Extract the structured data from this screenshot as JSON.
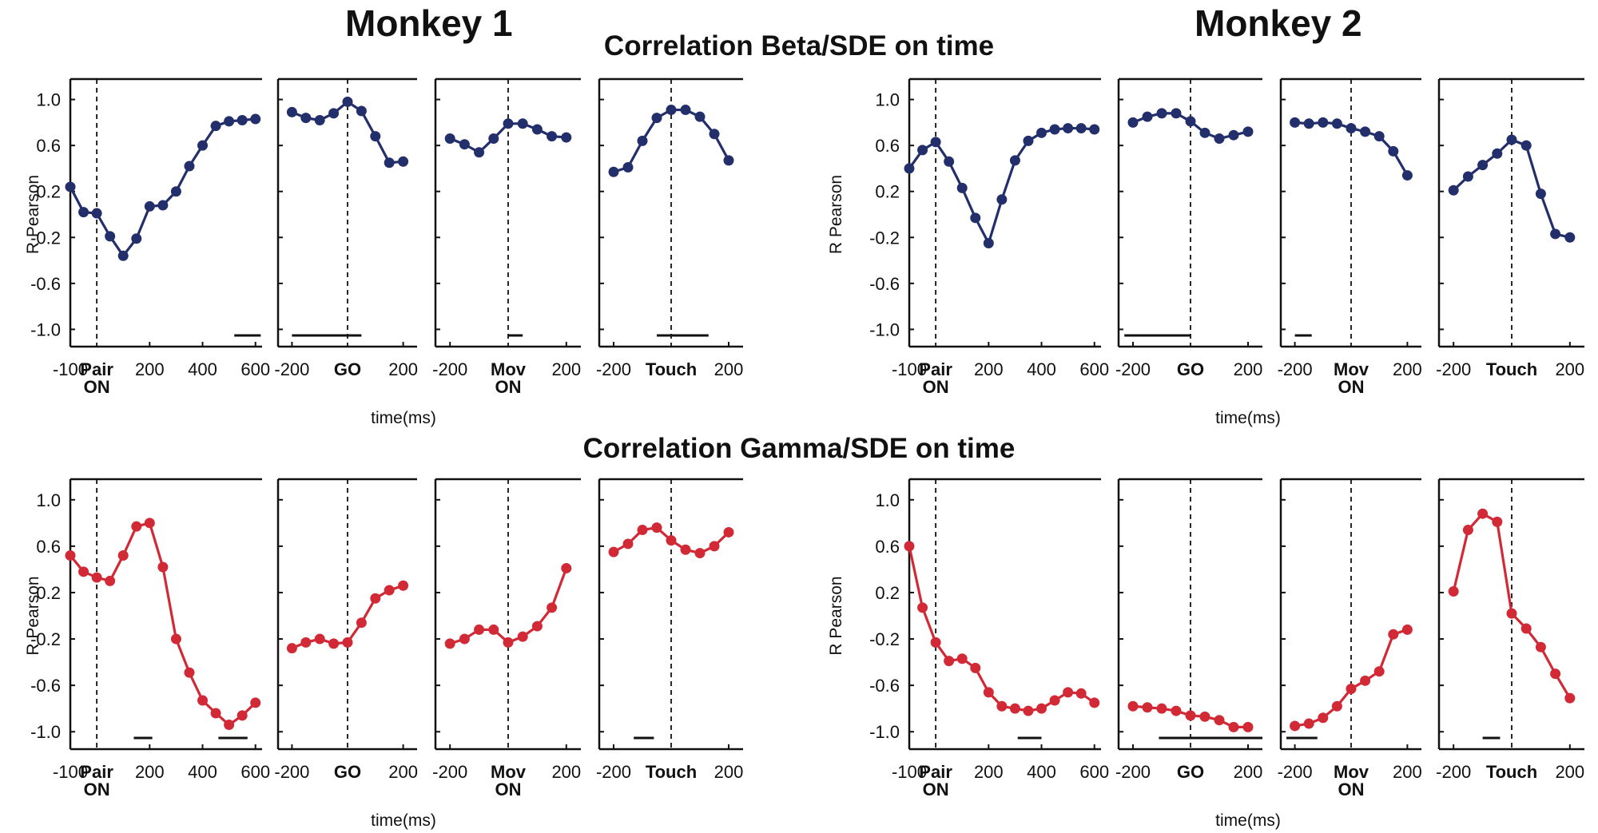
{
  "titles": {
    "monkey1": "Monkey 1",
    "monkey2": "Monkey 2",
    "beta_row": "Correlation Beta/SDE on time",
    "gamma_row": "Correlation Gamma/SDE on time"
  },
  "colors": {
    "beta": "#232f6b",
    "gamma": "#d12a36",
    "axis": "#111111"
  },
  "chart_data": [
    {
      "id": "m1-beta",
      "type": "line",
      "title": "Correlation Beta/SDE on time",
      "monkey": "Monkey 1",
      "ylabel": "R Pearson",
      "xlabel": "time(ms)",
      "ylim": [
        -1.15,
        1.15
      ],
      "yticks": [
        1.0,
        0.6,
        0.2,
        -0.2,
        -0.6,
        -1.0
      ],
      "ytick_labels": [
        "1.0",
        "0.6",
        "0.2",
        "-0.2",
        "-0.6",
        "-1.0"
      ],
      "color_key": "beta",
      "panels": [
        {
          "event": [
            "Pair",
            "ON"
          ],
          "xlim": [
            -100,
            625
          ],
          "ticks": [
            {
              "v": -100,
              "t": "-100"
            },
            {
              "v": 200,
              "t": "200"
            },
            {
              "v": 400,
              "t": "400"
            },
            {
              "v": 600,
              "t": "600"
            }
          ],
          "x": [
            -100,
            -50,
            0,
            50,
            100,
            150,
            200,
            250,
            300,
            350,
            400,
            450,
            500,
            550,
            600
          ],
          "y": [
            0.24,
            0.02,
            0.01,
            -0.19,
            -0.36,
            -0.21,
            0.07,
            0.08,
            0.2,
            0.42,
            0.6,
            0.77,
            0.81,
            0.82,
            0.83
          ],
          "sig": [
            [
              520,
              620
            ]
          ]
        },
        {
          "event": [
            "GO"
          ],
          "xlim": [
            -250,
            250
          ],
          "ticks": [
            {
              "v": -200,
              "t": "-200"
            },
            {
              "v": 200,
              "t": "200"
            }
          ],
          "x": [
            -200,
            -150,
            -100,
            -50,
            0,
            50,
            100,
            150,
            200
          ],
          "y": [
            0.89,
            0.84,
            0.82,
            0.88,
            0.98,
            0.9,
            0.68,
            0.45,
            0.46
          ],
          "sig": [
            [
              -200,
              50
            ]
          ]
        },
        {
          "event": [
            "Mov",
            "ON"
          ],
          "xlim": [
            -250,
            250
          ],
          "ticks": [
            {
              "v": -200,
              "t": "-200"
            },
            {
              "v": 200,
              "t": "200"
            }
          ],
          "x": [
            -200,
            -150,
            -100,
            -50,
            0,
            50,
            100,
            150,
            200
          ],
          "y": [
            0.66,
            0.61,
            0.54,
            0.66,
            0.79,
            0.79,
            0.74,
            0.68,
            0.67
          ],
          "sig": [
            [
              0,
              50
            ]
          ]
        },
        {
          "event": [
            "Touch"
          ],
          "xlim": [
            -250,
            250
          ],
          "ticks": [
            {
              "v": -200,
              "t": "-200"
            },
            {
              "v": 200,
              "t": "200"
            }
          ],
          "x": [
            -200,
            -150,
            -100,
            -50,
            0,
            50,
            100,
            150,
            200
          ],
          "y": [
            0.37,
            0.41,
            0.64,
            0.84,
            0.91,
            0.91,
            0.85,
            0.7,
            0.47
          ],
          "sig": [
            [
              -50,
              130
            ]
          ]
        }
      ]
    },
    {
      "id": "m2-beta",
      "type": "line",
      "title": "Correlation Beta/SDE on time",
      "monkey": "Monkey 2",
      "ylabel": "R Pearson",
      "xlabel": "time(ms)",
      "ylim": [
        -1.15,
        1.15
      ],
      "yticks": [
        1.0,
        0.6,
        0.2,
        -0.2,
        -0.6,
        -1.0
      ],
      "ytick_labels": [
        "1.0",
        "0.6",
        "0.2",
        "-0.2",
        "-0.6",
        "-1.0"
      ],
      "color_key": "beta",
      "panels": [
        {
          "event": [
            "Pair",
            "ON"
          ],
          "xlim": [
            -100,
            625
          ],
          "ticks": [
            {
              "v": -100,
              "t": "-100"
            },
            {
              "v": 200,
              "t": "200"
            },
            {
              "v": 400,
              "t": "400"
            },
            {
              "v": 600,
              "t": "600"
            }
          ],
          "x": [
            -100,
            -50,
            0,
            50,
            100,
            150,
            200,
            250,
            300,
            350,
            400,
            450,
            500,
            550,
            600
          ],
          "y": [
            0.4,
            0.56,
            0.63,
            0.46,
            0.23,
            -0.03,
            -0.25,
            0.13,
            0.47,
            0.64,
            0.71,
            0.74,
            0.75,
            0.75,
            0.74
          ],
          "sig": []
        },
        {
          "event": [
            "GO"
          ],
          "xlim": [
            -250,
            250
          ],
          "ticks": [
            {
              "v": -200,
              "t": "-200"
            },
            {
              "v": 200,
              "t": "200"
            }
          ],
          "x": [
            -200,
            -150,
            -100,
            -50,
            0,
            50,
            100,
            150,
            200
          ],
          "y": [
            0.8,
            0.85,
            0.88,
            0.88,
            0.81,
            0.71,
            0.66,
            0.69,
            0.72
          ],
          "sig": [
            [
              -230,
              0
            ]
          ]
        },
        {
          "event": [
            "Mov",
            "ON"
          ],
          "xlim": [
            -250,
            250
          ],
          "ticks": [
            {
              "v": -200,
              "t": "-200"
            },
            {
              "v": 200,
              "t": "200"
            }
          ],
          "x": [
            -200,
            -150,
            -100,
            -50,
            0,
            50,
            100,
            150,
            200
          ],
          "y": [
            0.8,
            0.79,
            0.8,
            0.79,
            0.75,
            0.72,
            0.68,
            0.55,
            0.34
          ],
          "sig": [
            [
              -200,
              -140
            ]
          ]
        },
        {
          "event": [
            "Touch"
          ],
          "xlim": [
            -250,
            250
          ],
          "ticks": [
            {
              "v": -200,
              "t": "-200"
            },
            {
              "v": 200,
              "t": "200"
            }
          ],
          "x": [
            -200,
            -150,
            -100,
            -50,
            0,
            50,
            100,
            150,
            200
          ],
          "y": [
            0.21,
            0.33,
            0.43,
            0.53,
            0.65,
            0.6,
            0.18,
            -0.17,
            -0.2
          ],
          "sig": []
        }
      ]
    },
    {
      "id": "m1-gamma",
      "type": "line",
      "title": "Correlation Gamma/SDE on time",
      "monkey": "Monkey 1",
      "ylabel": "R Pearson",
      "xlabel": "time(ms)",
      "ylim": [
        -1.15,
        1.15
      ],
      "yticks": [
        1.0,
        0.6,
        0.2,
        -0.2,
        -0.6,
        -1.0
      ],
      "ytick_labels": [
        "1.0",
        "0.6",
        "0.2",
        "-0.2",
        "-0.6",
        "-1.0"
      ],
      "color_key": "gamma",
      "panels": [
        {
          "event": [
            "Pair",
            "ON"
          ],
          "xlim": [
            -100,
            625
          ],
          "ticks": [
            {
              "v": -100,
              "t": "-100"
            },
            {
              "v": 200,
              "t": "200"
            },
            {
              "v": 400,
              "t": "400"
            },
            {
              "v": 600,
              "t": "600"
            }
          ],
          "x": [
            -100,
            -50,
            0,
            50,
            100,
            150,
            200,
            250,
            300,
            350,
            400,
            450,
            500,
            550,
            600
          ],
          "y": [
            0.52,
            0.38,
            0.33,
            0.3,
            0.52,
            0.77,
            0.8,
            0.42,
            -0.2,
            -0.49,
            -0.73,
            -0.84,
            -0.94,
            -0.86,
            -0.75
          ],
          "sig": [
            [
              140,
              210
            ],
            [
              460,
              570
            ]
          ]
        },
        {
          "event": [
            "GO"
          ],
          "xlim": [
            -250,
            250
          ],
          "ticks": [
            {
              "v": -200,
              "t": "-200"
            },
            {
              "v": 200,
              "t": "200"
            }
          ],
          "x": [
            -200,
            -150,
            -100,
            -50,
            0,
            50,
            100,
            150,
            200
          ],
          "y": [
            -0.28,
            -0.23,
            -0.2,
            -0.24,
            -0.23,
            -0.06,
            0.15,
            0.22,
            0.26
          ],
          "sig": []
        },
        {
          "event": [
            "Mov",
            "ON"
          ],
          "xlim": [
            -250,
            250
          ],
          "ticks": [
            {
              "v": -200,
              "t": "-200"
            },
            {
              "v": 200,
              "t": "200"
            }
          ],
          "x": [
            -200,
            -150,
            -100,
            -50,
            0,
            50,
            100,
            150,
            200
          ],
          "y": [
            -0.24,
            -0.2,
            -0.12,
            -0.12,
            -0.23,
            -0.18,
            -0.09,
            0.07,
            0.41
          ],
          "sig": []
        },
        {
          "event": [
            "Touch"
          ],
          "xlim": [
            -250,
            250
          ],
          "ticks": [
            {
              "v": -200,
              "t": "-200"
            },
            {
              "v": 200,
              "t": "200"
            }
          ],
          "x": [
            -200,
            -150,
            -100,
            -50,
            0,
            50,
            100,
            150,
            200
          ],
          "y": [
            0.55,
            0.62,
            0.74,
            0.76,
            0.65,
            0.57,
            0.54,
            0.6,
            0.72
          ],
          "sig": [
            [
              -130,
              -60
            ]
          ]
        }
      ]
    },
    {
      "id": "m2-gamma",
      "type": "line",
      "title": "Correlation Gamma/SDE on time",
      "monkey": "Monkey 2",
      "ylabel": "R Pearson",
      "xlabel": "time(ms)",
      "ylim": [
        -1.15,
        1.15
      ],
      "yticks": [
        1.0,
        0.6,
        0.2,
        -0.2,
        -0.6,
        -1.0
      ],
      "ytick_labels": [
        "1.0",
        "0.6",
        "0.2",
        "-0.2",
        "-0.6",
        "-1.0"
      ],
      "color_key": "gamma",
      "panels": [
        {
          "event": [
            "Pair",
            "ON"
          ],
          "xlim": [
            -100,
            625
          ],
          "ticks": [
            {
              "v": -100,
              "t": "-100"
            },
            {
              "v": 200,
              "t": "200"
            },
            {
              "v": 400,
              "t": "400"
            },
            {
              "v": 600,
              "t": "600"
            }
          ],
          "x": [
            -100,
            -50,
            0,
            50,
            100,
            150,
            200,
            250,
            300,
            350,
            400,
            450,
            500,
            550,
            600
          ],
          "y": [
            0.6,
            0.07,
            -0.23,
            -0.39,
            -0.37,
            -0.45,
            -0.66,
            -0.78,
            -0.8,
            -0.82,
            -0.8,
            -0.73,
            -0.66,
            -0.67,
            -0.75
          ],
          "sig": [
            [
              310,
              400
            ]
          ]
        },
        {
          "event": [
            "GO"
          ],
          "xlim": [
            -250,
            250
          ],
          "ticks": [
            {
              "v": -200,
              "t": "-200"
            },
            {
              "v": 200,
              "t": "200"
            }
          ],
          "x": [
            -200,
            -150,
            -100,
            -50,
            0,
            50,
            100,
            150,
            200
          ],
          "y": [
            -0.78,
            -0.79,
            -0.8,
            -0.82,
            -0.86,
            -0.87,
            -0.9,
            -0.96,
            -0.96
          ],
          "sig": [
            [
              -110,
              250
            ]
          ]
        },
        {
          "event": [
            "Mov",
            "ON"
          ],
          "xlim": [
            -250,
            250
          ],
          "ticks": [
            {
              "v": -200,
              "t": "-200"
            },
            {
              "v": 200,
              "t": "200"
            }
          ],
          "x": [
            -200,
            -150,
            -100,
            -50,
            0,
            50,
            100,
            150,
            200
          ],
          "y": [
            -0.95,
            -0.93,
            -0.88,
            -0.78,
            -0.63,
            -0.56,
            -0.48,
            -0.16,
            -0.12
          ],
          "sig": [
            [
              -230,
              -120
            ]
          ]
        },
        {
          "event": [
            "Touch"
          ],
          "xlim": [
            -250,
            250
          ],
          "ticks": [
            {
              "v": -200,
              "t": "-200"
            },
            {
              "v": 200,
              "t": "200"
            }
          ],
          "x": [
            -200,
            -150,
            -100,
            -50,
            0,
            50,
            100,
            150,
            200
          ],
          "y": [
            0.21,
            0.74,
            0.88,
            0.81,
            0.02,
            -0.11,
            -0.27,
            -0.5,
            -0.71
          ],
          "sig": [
            [
              -100,
              -40
            ]
          ]
        }
      ]
    }
  ]
}
